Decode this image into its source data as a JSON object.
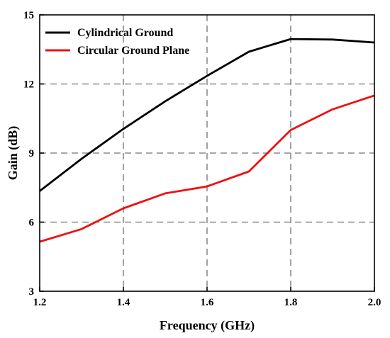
{
  "chart_data": {
    "type": "line",
    "title": "",
    "xlabel": "Frequency (GHz)",
    "ylabel": "Gain (dB)",
    "xlim": [
      1.2,
      2.0
    ],
    "ylim": [
      3,
      15
    ],
    "xticks": [
      1.2,
      1.4,
      1.6,
      1.8,
      2.0
    ],
    "xtick_labels": [
      "1.2",
      "1.4",
      "1.6",
      "1.8",
      "2.0"
    ],
    "yticks": [
      3,
      6,
      9,
      12,
      15
    ],
    "ytick_labels": [
      "3",
      "6",
      "9",
      "12",
      "15"
    ],
    "grid": true,
    "legend_position": "top-left",
    "x": [
      1.2,
      1.3,
      1.4,
      1.5,
      1.6,
      1.7,
      1.8,
      1.9,
      2.0
    ],
    "series": [
      {
        "name": "Cylindrical Ground",
        "color": "#000000",
        "values": [
          7.35,
          8.75,
          10.05,
          11.25,
          12.35,
          13.4,
          13.95,
          13.93,
          13.8
        ]
      },
      {
        "name": "Circular Ground Plane",
        "color": "#ee1111",
        "values": [
          5.15,
          5.7,
          6.6,
          7.25,
          7.55,
          8.2,
          10.0,
          10.9,
          11.5
        ]
      }
    ]
  }
}
